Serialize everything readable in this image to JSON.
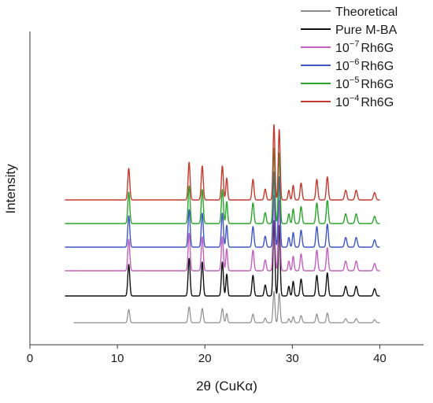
{
  "chart_data": {
    "type": "line",
    "title": "",
    "xlabel": "2θ (CuKα)",
    "ylabel": "Intensity",
    "xlim": [
      0,
      45
    ],
    "xticks": [
      0,
      10,
      20,
      30,
      40
    ],
    "yticks_shown": false,
    "grid": false,
    "legend": {
      "placement": "top-right",
      "entries": [
        {
          "prefix": "Theoretical",
          "exp": "",
          "suffix": "",
          "color": "#8c8c8c"
        },
        {
          "prefix": "Pure M-BA",
          "exp": "",
          "suffix": "",
          "color": "#111111"
        },
        {
          "prefix": "10",
          "exp": "−7",
          "suffix": "Rh6G",
          "color": "#c460c0"
        },
        {
          "prefix": "10",
          "exp": "−6",
          "suffix": "Rh6G",
          "color": "#3e55c8"
        },
        {
          "prefix": "10",
          "exp": "−5",
          "suffix": "Rh6G",
          "color": "#2aa52a"
        },
        {
          "prefix": "10",
          "exp": "−4",
          "suffix": "Rh6G",
          "color": "#c43a2e"
        }
      ]
    },
    "series": [
      {
        "name": "Theoretical",
        "color": "#8c8c8c",
        "x_start": 5,
        "x_end": 40,
        "baseline": 0.0,
        "height_scale": 0.23
      },
      {
        "name": "Pure M-BA",
        "color": "#111111",
        "x_start": 4,
        "x_end": 40,
        "baseline": 1.0,
        "height_scale": 0.55
      },
      {
        "name": "10−7 Rh6G",
        "color": "#c460c0",
        "x_start": 4,
        "x_end": 40,
        "baseline": 2.0,
        "height_scale": 0.55
      },
      {
        "name": "10−6 Rh6G",
        "color": "#3e55c8",
        "x_start": 4,
        "x_end": 40,
        "baseline": 3.0,
        "height_scale": 0.55
      },
      {
        "name": "10−5 Rh6G",
        "color": "#2aa52a",
        "x_start": 4,
        "x_end": 40,
        "baseline": 4.0,
        "height_scale": 0.55
      },
      {
        "name": "10−4 Rh6G",
        "color": "#c43a2e",
        "x_start": 4,
        "x_end": 40,
        "baseline": 5.0,
        "height_scale": 0.55
      }
    ],
    "peaks": [
      {
        "x": 11.3,
        "h": 2.6,
        "w": 0.16
      },
      {
        "x": 18.2,
        "h": 3.1,
        "w": 0.16
      },
      {
        "x": 19.7,
        "h": 2.8,
        "w": 0.16
      },
      {
        "x": 22.0,
        "h": 2.8,
        "w": 0.16
      },
      {
        "x": 22.5,
        "h": 1.8,
        "w": 0.14
      },
      {
        "x": 25.5,
        "h": 1.7,
        "w": 0.16
      },
      {
        "x": 26.9,
        "h": 0.9,
        "w": 0.16
      },
      {
        "x": 27.9,
        "h": 6.2,
        "w": 0.15
      },
      {
        "x": 28.5,
        "h": 5.8,
        "w": 0.15
      },
      {
        "x": 29.6,
        "h": 0.8,
        "w": 0.14
      },
      {
        "x": 30.1,
        "h": 1.2,
        "w": 0.14
      },
      {
        "x": 31.0,
        "h": 1.4,
        "w": 0.16
      },
      {
        "x": 32.8,
        "h": 1.7,
        "w": 0.16
      },
      {
        "x": 34.0,
        "h": 1.9,
        "w": 0.16
      },
      {
        "x": 36.1,
        "h": 0.8,
        "w": 0.18
      },
      {
        "x": 37.3,
        "h": 0.8,
        "w": 0.18
      },
      {
        "x": 39.4,
        "h": 0.6,
        "w": 0.18
      }
    ]
  }
}
